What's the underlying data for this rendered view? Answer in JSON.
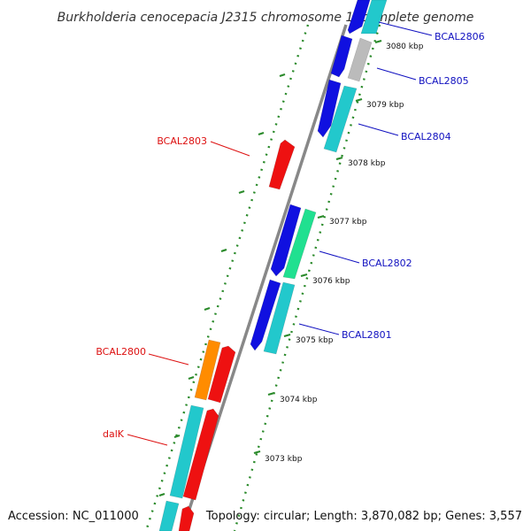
{
  "title": "Burkholderia cenocepacia J2315 chromosome 1, complete genome",
  "accession": "Accession: NC_011000",
  "summary": "Topology: circular; Length: 3,870,082 bp; Genes: 3,557",
  "colors": {
    "backbone": "#888888",
    "tick_dot": "#2a8a2a",
    "forward_label": "#1010c0",
    "reverse_label": "#dd1111",
    "blue": "#1010e0",
    "cyan": "#22c8cc",
    "red": "#ee1111",
    "orange": "#ff8c00",
    "spring": "#20e090",
    "gray": "#bbbbbb"
  },
  "ticks": [
    {
      "label": "3080 kbp"
    },
    {
      "label": "3079 kbp"
    },
    {
      "label": "3078 kbp"
    },
    {
      "label": "3077 kbp"
    },
    {
      "label": "3076 kbp"
    },
    {
      "label": "3075 kbp"
    },
    {
      "label": "3074 kbp"
    },
    {
      "label": "3073 kbp"
    }
  ],
  "gene_labels": [
    {
      "name": "BCAL2806",
      "strand": "forward"
    },
    {
      "name": "BCAL2805",
      "strand": "forward"
    },
    {
      "name": "BCAL2804",
      "strand": "forward"
    },
    {
      "name": "BCAL2803",
      "strand": "reverse"
    },
    {
      "name": "BCAL2802",
      "strand": "forward"
    },
    {
      "name": "BCAL2801",
      "strand": "forward"
    },
    {
      "name": "BCAL2800",
      "strand": "reverse"
    },
    {
      "name": "dalK",
      "strand": "reverse"
    }
  ],
  "features": [
    {
      "track": "forward",
      "color": "blue"
    },
    {
      "track": "forward",
      "color": "blue"
    },
    {
      "track": "forward",
      "color": "blue"
    },
    {
      "track": "forward",
      "color": "blue"
    },
    {
      "track": "forward",
      "color": "blue"
    },
    {
      "track": "cds-forward",
      "color": "cyan"
    },
    {
      "track": "cds-forward",
      "color": "gray"
    },
    {
      "track": "cds-forward",
      "color": "cyan"
    },
    {
      "track": "cds-forward",
      "color": "spring"
    },
    {
      "track": "cds-forward",
      "color": "cyan"
    },
    {
      "track": "cds-reverse",
      "color": "orange"
    },
    {
      "track": "cds-reverse",
      "color": "cyan"
    },
    {
      "track": "cds-reverse",
      "color": "cyan"
    },
    {
      "track": "reverse",
      "color": "red"
    },
    {
      "track": "reverse",
      "color": "red"
    },
    {
      "track": "reverse",
      "color": "red"
    },
    {
      "track": "reverse",
      "color": "red"
    },
    {
      "track": "reverse",
      "color": "red"
    }
  ]
}
